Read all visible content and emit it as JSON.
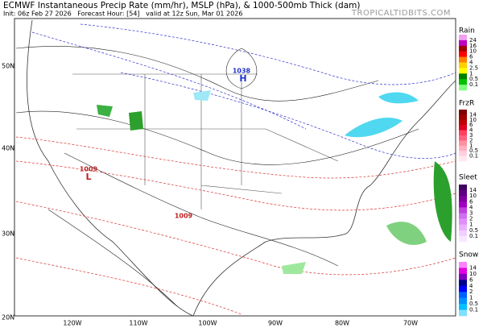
{
  "header": {
    "title": "ECMWF Instantaneous Precip Rate (mm/hr), MSLP (hPa), & 1000-500mb Thick (dam)",
    "subtitle": "Init: 06z Feb 27 2026   Forecast Hour: [54]   valid at 12z Sun, Mar 01 2026",
    "brand": "TROPICALTIDBITS.COM"
  },
  "latitudes": [
    "50N",
    "40N",
    "30N",
    "20N"
  ],
  "longitudes": [
    "120W",
    "110W",
    "100W",
    "90W",
    "80W",
    "70W"
  ],
  "centers": [
    {
      "pressure": "1038",
      "letter": "H"
    },
    {
      "pressure": "1009",
      "letter": "L"
    },
    {
      "pressure": "1009",
      "letter": ""
    }
  ],
  "legends": [
    {
      "title": "Rain",
      "labels": [
        "24",
        "16",
        "10",
        "6",
        "4",
        "2.5",
        "1",
        "0.5",
        "0.1"
      ],
      "colors": [
        "#f0a0f0",
        "#c000c0",
        "#a00000",
        "#ff0000",
        "#ff8000",
        "#ffd000",
        "#ffff00",
        "#008000",
        "#00c000",
        "#80ff80"
      ]
    },
    {
      "title": "FrzR",
      "labels": [
        "14",
        "10",
        "6",
        "4",
        "3",
        "2",
        "1",
        "0.5",
        "0.1"
      ],
      "colors": [
        "#800000",
        "#a00000",
        "#c00000",
        "#e00020",
        "#ff4060",
        "#ff6080",
        "#ff90a0",
        "#ffb0c0",
        "#ffd0e0",
        "#ffe8f0"
      ]
    },
    {
      "title": "Sleet",
      "labels": [
        "14",
        "10",
        "6",
        "4",
        "3",
        "2",
        "1",
        "0.5",
        "0.1"
      ],
      "colors": [
        "#400060",
        "#600080",
        "#8000a0",
        "#a000c0",
        "#c040e0",
        "#d070f0",
        "#e090f8",
        "#eab0ff",
        "#f0d0ff",
        "#f8e8ff"
      ]
    },
    {
      "title": "Snow",
      "labels": [
        "14",
        "10",
        "6",
        "4",
        "2",
        "1",
        "0.5",
        "0.1"
      ],
      "colors": [
        "#ff80ff",
        "#e000e0",
        "#8000c0",
        "#000090",
        "#0000ff",
        "#0060ff",
        "#0090ff",
        "#00c0ff",
        "#80e0ff"
      ]
    }
  ]
}
